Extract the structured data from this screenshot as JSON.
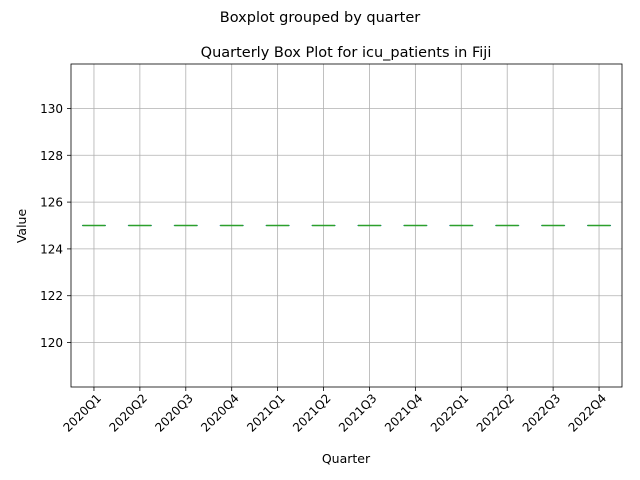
{
  "chart_data": {
    "type": "boxplot",
    "suptitle": "Boxplot grouped by quarter",
    "title": "Quarterly Box Plot for icu_patients in Fiji",
    "xlabel": "Quarter",
    "ylabel": "Value",
    "categories": [
      "2020Q1",
      "2020Q2",
      "2020Q3",
      "2020Q4",
      "2021Q1",
      "2021Q2",
      "2021Q3",
      "2021Q4",
      "2022Q1",
      "2022Q2",
      "2022Q3",
      "2022Q4"
    ],
    "series": [
      {
        "boxes": [
          {
            "min": 125,
            "q1": 125,
            "median": 125,
            "q3": 125,
            "max": 125
          },
          {
            "min": 125,
            "q1": 125,
            "median": 125,
            "q3": 125,
            "max": 125
          },
          {
            "min": 125,
            "q1": 125,
            "median": 125,
            "q3": 125,
            "max": 125
          },
          {
            "min": 125,
            "q1": 125,
            "median": 125,
            "q3": 125,
            "max": 125
          },
          {
            "min": 125,
            "q1": 125,
            "median": 125,
            "q3": 125,
            "max": 125
          },
          {
            "min": 125,
            "q1": 125,
            "median": 125,
            "q3": 125,
            "max": 125
          },
          {
            "min": 125,
            "q1": 125,
            "median": 125,
            "q3": 125,
            "max": 125
          },
          {
            "min": 125,
            "q1": 125,
            "median": 125,
            "q3": 125,
            "max": 125
          },
          {
            "min": 125,
            "q1": 125,
            "median": 125,
            "q3": 125,
            "max": 125
          },
          {
            "min": 125,
            "q1": 125,
            "median": 125,
            "q3": 125,
            "max": 125
          },
          {
            "min": 125,
            "q1": 125,
            "median": 125,
            "q3": 125,
            "max": 125
          },
          {
            "min": 125,
            "q1": 125,
            "median": 125,
            "q3": 125,
            "max": 125
          }
        ]
      }
    ],
    "ylim": [
      118.1,
      131.9
    ],
    "yticks": [
      120,
      122,
      124,
      126,
      128,
      130
    ],
    "grid": true,
    "legend": "none",
    "colors": {
      "box": "#1f77b4",
      "median": "#2ca02c",
      "grid": "#b0b0b0",
      "axis": "#000000"
    }
  }
}
